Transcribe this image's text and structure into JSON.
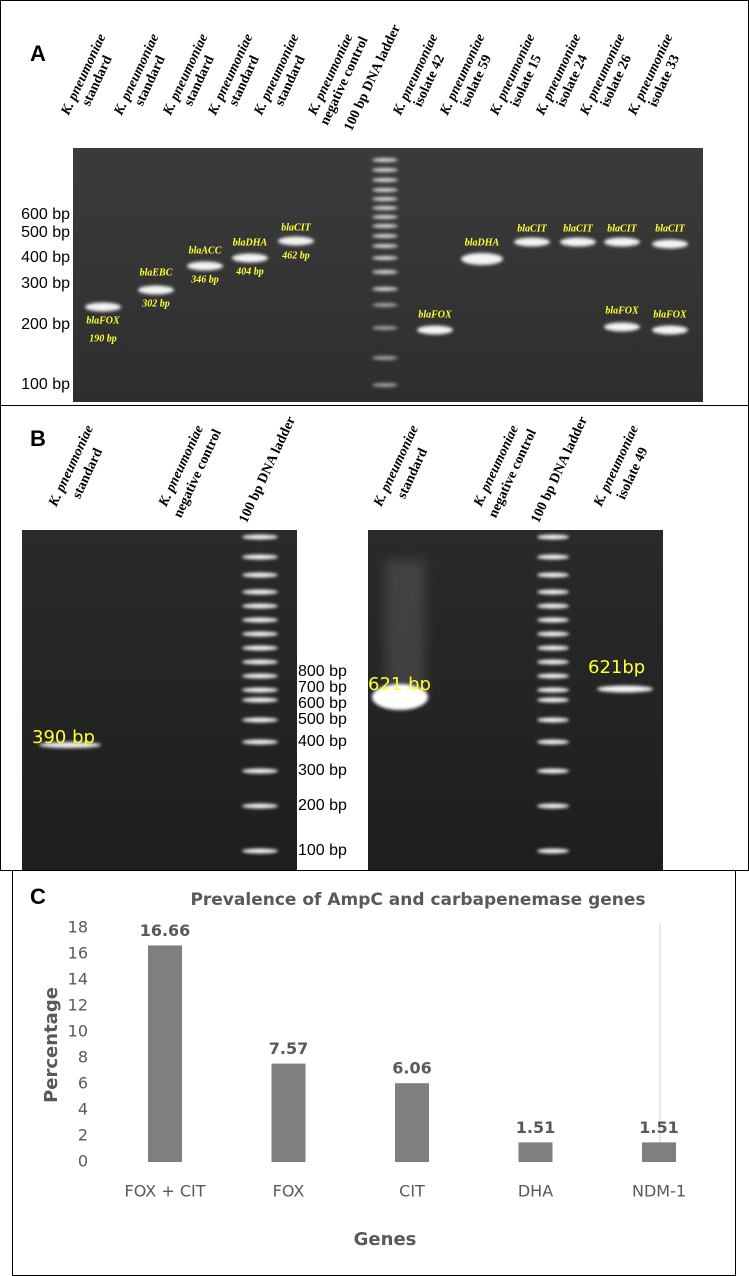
{
  "panel_a": {
    "label": "A",
    "lanes": [
      [
        "K. pneumoniae",
        "standard"
      ],
      [
        "K. pneumoniae",
        "standard"
      ],
      [
        "K. pneumoniae",
        "standard"
      ],
      [
        "K. pneumoniae",
        "standard"
      ],
      [
        "K. pneumoniae",
        "standard"
      ],
      [
        "K. pneumoniae",
        "negative control"
      ],
      [
        "100 bp DNA ladder"
      ],
      [
        "K. pneumoniae",
        "isolate 42"
      ],
      [
        "K. pneumoniae",
        "isolate 59"
      ],
      [
        "K. pneumoniae",
        "isolate 15"
      ],
      [
        "K. pneumoniae",
        "isolate 24"
      ],
      [
        "K. pneumoniae",
        "isolate 26"
      ],
      [
        "K. pneumoniae",
        "isolate 33"
      ]
    ],
    "sizes": [
      "600 bp",
      "500 bp",
      "400 bp",
      "300 bp",
      "200 bp",
      "100 bp"
    ],
    "bands": [
      [
        "blaFOX",
        "190 bp"
      ],
      [
        "blaEBC",
        "302 bp"
      ],
      [
        "blaACC",
        "346 bp"
      ],
      [
        "blaDHA",
        "404 bp"
      ],
      [
        "blaCIT",
        "462 bp"
      ],
      [
        "blaFOX"
      ],
      [
        "blaDHA"
      ],
      [
        "blaCIT"
      ],
      [
        "blaCIT"
      ],
      [
        "blaCIT"
      ],
      [
        "blaFOX"
      ],
      [
        "blaCIT"
      ],
      [
        "blaFOX"
      ]
    ]
  },
  "panel_b": {
    "label": "B",
    "left_lanes": [
      [
        "K. pneumoniae",
        "standard"
      ],
      [
        "K. pneumoniae",
        "negative control"
      ],
      [
        "100 bp DNA ladder"
      ]
    ],
    "right_lanes": [
      [
        "K. pneumoniae",
        "standard"
      ],
      [
        "K. pneumoniae",
        "negative control"
      ],
      [
        "100 bp DNA ladder"
      ],
      [
        "K. pneumoniae",
        "isolate 49"
      ]
    ],
    "sizes": [
      "800 bp",
      "700 bp",
      "600 bp",
      "500 bp",
      "400 bp",
      "300 bp",
      "200 bp",
      "100 bp"
    ],
    "band_labels": [
      "390 bp",
      "621 bp",
      "621bp"
    ]
  },
  "panel_c_label": "C",
  "chart_data": {
    "type": "bar",
    "title": "Prevalence of AmpC and carbapenemase genes",
    "x_label": "Genes",
    "y_label": "Percentage",
    "categories": [
      "FOX + CIT",
      "FOX",
      "CIT",
      "DHA",
      "NDM-1"
    ],
    "values": [
      16.66,
      7.57,
      6.06,
      1.51,
      1.51
    ],
    "color": "#7f7f7f",
    "ylim": [
      0,
      18
    ],
    "yticks": [
      0,
      2,
      4,
      6,
      8,
      10,
      12,
      14,
      16,
      18
    ],
    "grid": false
  }
}
